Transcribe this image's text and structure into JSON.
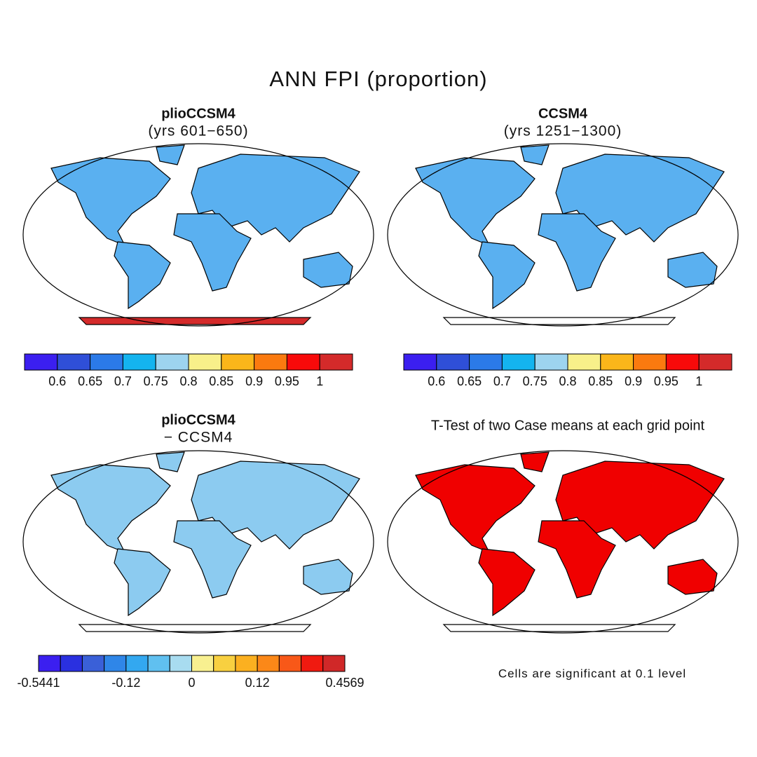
{
  "title": "ANN FPI (proportion)",
  "panels": [
    {
      "title": "plioCCSM4",
      "subtitle": "(yrs 601−650)"
    },
    {
      "title": "CCSM4",
      "subtitle": "(yrs 1251−1300)"
    },
    {
      "title": "plioCCSM4",
      "subtitle": "− CCSM4"
    },
    {
      "title": "T-Test of two Case means at each grid point",
      "note": "Cells are significant at 0.1 level"
    }
  ],
  "colorbars": [
    {
      "colors": [
        "#3b1ff0",
        "#2f4fd8",
        "#2b7ae8",
        "#14b4ef",
        "#9dd4ef",
        "#f8f08a",
        "#fbb61a",
        "#fb7a0f",
        "#f80a0a",
        "#d42a2a"
      ],
      "labels": [
        0.6,
        0.65,
        0.7,
        0.75,
        0.8,
        0.85,
        0.9,
        0.95,
        1
      ]
    },
    {
      "colors": [
        "#3b1ff0",
        "#2f4fd8",
        "#2b7ae8",
        "#14b4ef",
        "#9dd4ef",
        "#f8f08a",
        "#fbb61a",
        "#fb7a0f",
        "#f80a0a",
        "#d42a2a"
      ],
      "labels": [
        0.6,
        0.65,
        0.7,
        0.75,
        0.8,
        0.85,
        0.9,
        0.95,
        1
      ]
    },
    {
      "colors": [
        "#3b1ff0",
        "#2a30e0",
        "#3a60d8",
        "#2f86e8",
        "#33a8f0",
        "#60c0f0",
        "#a8dcf0",
        "#f8f090",
        "#f8d040",
        "#fbb020",
        "#fb8818",
        "#f85818",
        "#f01a10",
        "#d02828"
      ],
      "labels": [
        -0.5441,
        -0.12,
        0,
        0.12,
        0.4569
      ]
    }
  ]
}
